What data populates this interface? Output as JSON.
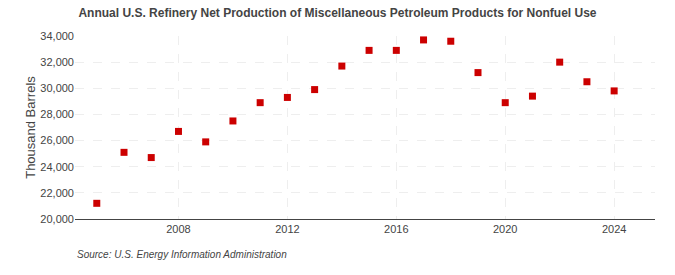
{
  "chart_data": {
    "type": "scatter",
    "title": "Annual U.S. Refinery Net Production of Miscellaneous Petroleum Products for Nonfuel Use",
    "y_label": "Thousand Barrels",
    "annotations": [
      "Source: U.S. Energy Information Administration"
    ],
    "x": [
      2005,
      2006,
      2007,
      2008,
      2009,
      2010,
      2011,
      2012,
      2013,
      2014,
      2015,
      2016,
      2017,
      2018,
      2019,
      2020,
      2021,
      2022,
      2023,
      2024
    ],
    "values": [
      21200,
      25100,
      24700,
      26700,
      25900,
      27500,
      28900,
      29300,
      29900,
      31700,
      32900,
      32900,
      33700,
      33600,
      31200,
      28900,
      29400,
      32000,
      30500,
      29800
    ],
    "color": "#cc0000",
    "marker": "square",
    "xlim": [
      2004.2,
      2025.5
    ],
    "xticks": [
      2008,
      2012,
      2016,
      2020,
      2024
    ],
    "ylim": [
      20000,
      34000
    ],
    "yticks": [
      {
        "value": 20000,
        "label": "20,000"
      },
      {
        "value": 22000,
        "label": "22,000"
      },
      {
        "value": 24000,
        "label": "24,000"
      },
      {
        "value": 26000,
        "label": "26,000"
      },
      {
        "value": 28000,
        "label": "28,000"
      },
      {
        "value": 30000,
        "label": "30,000"
      },
      {
        "value": 32000,
        "label": "32,000"
      },
      {
        "value": 34000,
        "label": "34,000"
      }
    ],
    "grid": true
  }
}
